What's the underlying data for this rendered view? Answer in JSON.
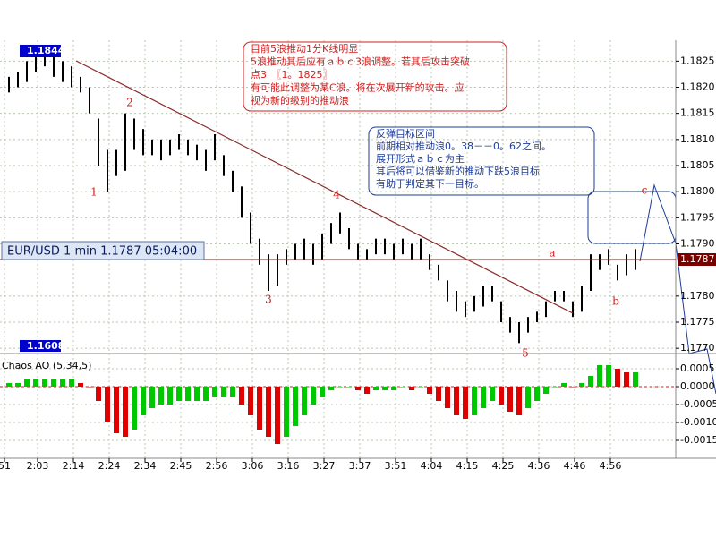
{
  "chart_data": {
    "type": "candlestick",
    "symbol_label": "EUR/USD 1 min 1.1787 05:04:00",
    "price_max": 1.1844,
    "price_min": 1.1608,
    "current_price": 1.1787,
    "indicator_title": "Chaos AO (5,34,5)",
    "x": [
      1,
      2,
      3,
      4,
      5,
      6,
      7,
      8,
      9,
      10,
      11,
      12,
      13,
      14,
      15,
      16,
      17,
      18,
      19,
      20,
      21,
      22,
      23,
      24,
      25,
      26,
      27,
      28,
      29,
      30,
      31,
      32,
      33,
      34,
      35,
      36,
      37,
      38,
      39,
      40,
      41,
      42,
      43,
      44,
      45,
      46,
      47,
      48,
      49,
      50,
      51,
      52,
      53,
      54,
      55,
      56,
      57,
      58,
      59,
      60,
      61,
      62,
      63,
      64,
      65,
      66,
      67,
      68,
      69,
      70,
      71
    ],
    "high": [
      1.1822,
      1.1823,
      1.1825,
      1.1827,
      1.1828,
      1.1826,
      1.1825,
      1.1824,
      1.1822,
      1.182,
      1.1814,
      1.1808,
      1.1808,
      1.1815,
      1.1814,
      1.1812,
      1.181,
      1.181,
      1.181,
      1.1811,
      1.181,
      1.1809,
      1.1808,
      1.1811,
      1.1807,
      1.1804,
      1.1801,
      1.1796,
      1.1791,
      1.1788,
      1.1788,
      1.1789,
      1.179,
      1.1791,
      1.179,
      1.1792,
      1.1794,
      1.1796,
      1.1793,
      1.179,
      1.1789,
      1.1791,
      1.1791,
      1.179,
      1.1791,
      1.179,
      1.1791,
      1.1788,
      1.1786,
      1.1783,
      1.1781,
      1.1779,
      1.178,
      1.1782,
      1.1782,
      1.1779,
      1.1776,
      1.1775,
      1.1776,
      1.1777,
      1.1779,
      1.1781,
      1.1781,
      1.1779,
      1.1782,
      1.1788,
      1.1788,
      1.1789,
      1.1786,
      1.1788,
      1.1789
    ],
    "low": [
      1.1819,
      1.182,
      1.1821,
      1.1823,
      1.1824,
      1.1822,
      1.1821,
      1.182,
      1.1819,
      1.1815,
      1.1805,
      1.18,
      1.1803,
      1.1804,
      1.1808,
      1.1807,
      1.1807,
      1.1806,
      1.1807,
      1.1808,
      1.1807,
      1.1806,
      1.1804,
      1.1806,
      1.1803,
      1.18,
      1.1795,
      1.179,
      1.1786,
      1.1781,
      1.1782,
      1.1786,
      1.1787,
      1.1787,
      1.1786,
      1.1787,
      1.179,
      1.1792,
      1.1789,
      1.1787,
      1.1787,
      1.1788,
      1.1788,
      1.1787,
      1.1788,
      1.1787,
      1.1787,
      1.1785,
      1.1783,
      1.1779,
      1.1777,
      1.1776,
      1.1777,
      1.1778,
      1.1779,
      1.1775,
      1.1773,
      1.1771,
      1.1773,
      1.1775,
      1.1776,
      1.1779,
      1.1779,
      1.1776,
      1.1777,
      1.1781,
      1.1785,
      1.1786,
      1.1783,
      1.1784,
      1.1785
    ],
    "color": "#000000",
    "ao": [
      0.0001,
      0.0001,
      0.0002,
      0.0002,
      0.0002,
      0.0002,
      0.0002,
      0.0002,
      0.0001,
      0.0,
      -0.0004,
      -0.001,
      -0.0013,
      -0.0014,
      -0.0012,
      -0.0008,
      -0.0006,
      -0.0005,
      -0.0005,
      -0.0004,
      -0.0004,
      -0.0004,
      -0.0004,
      -0.0003,
      -0.0003,
      -0.0003,
      -0.0005,
      -0.0008,
      -0.0012,
      -0.0014,
      -0.0016,
      -0.0014,
      -0.0011,
      -0.0008,
      -0.0005,
      -0.0003,
      -0.0001,
      0.0,
      0.0,
      -0.0001,
      -0.0002,
      -0.0001,
      -0.0001,
      -0.0001,
      0.0,
      -0.0001,
      0.0,
      -0.0002,
      -0.0004,
      -0.0006,
      -0.0008,
      -0.0009,
      -0.0008,
      -0.0006,
      -0.0004,
      -0.0005,
      -0.0007,
      -0.0008,
      -0.0006,
      -0.0004,
      -0.0002,
      0.0,
      0.0001,
      0.0,
      0.0001,
      0.0003,
      0.0006,
      0.0006,
      0.0005,
      0.0004,
      0.0004
    ],
    "ao_up_color": "#00c800",
    "ao_down_color": "#e00000",
    "xlim": [
      0,
      75.5
    ],
    "xticks": [
      {
        "value": 0.5,
        "label": "51"
      },
      {
        "value": 4.2,
        "label": "2:03"
      },
      {
        "value": 8.2,
        "label": "2:14"
      },
      {
        "value": 12.2,
        "label": "2:24"
      },
      {
        "value": 16.2,
        "label": "2:34"
      },
      {
        "value": 20.2,
        "label": "2:45"
      },
      {
        "value": 24.2,
        "label": "2:56"
      },
      {
        "value": 28.2,
        "label": "3:06"
      },
      {
        "value": 32.2,
        "label": "3:16"
      },
      {
        "value": 36.2,
        "label": "3:27"
      },
      {
        "value": 40.2,
        "label": "3:37"
      },
      {
        "value": 44.2,
        "label": "3:51"
      },
      {
        "value": 48.2,
        "label": "4:04"
      },
      {
        "value": 52.2,
        "label": "4:15"
      },
      {
        "value": 56.2,
        "label": "4:25"
      },
      {
        "value": 60.2,
        "label": "4:36"
      },
      {
        "value": 64.2,
        "label": "4:46"
      },
      {
        "value": 68.2,
        "label": "4:56"
      }
    ],
    "ylim": [
      1.1769,
      1.1829
    ],
    "yticks": [
      {
        "value": 1.1825,
        "label": "1.1825"
      },
      {
        "value": 1.182,
        "label": "1.1820"
      },
      {
        "value": 1.1815,
        "label": "1.1815"
      },
      {
        "value": 1.181,
        "label": "1.1810"
      },
      {
        "value": 1.1805,
        "label": "1.1805"
      },
      {
        "value": 1.18,
        "label": "1.1800"
      },
      {
        "value": 1.1795,
        "label": "1.1795"
      },
      {
        "value": 1.179,
        "label": "1.1790"
      },
      {
        "value": 1.178,
        "label": "1.1780"
      },
      {
        "value": 1.1775,
        "label": "1.1775"
      },
      {
        "value": 1.177,
        "label": "1.1770"
      }
    ],
    "y2lim": [
      -0.0019,
      0.0008
    ],
    "y2ticks": [
      {
        "value": 0.0005,
        "label": "0.0005"
      },
      {
        "value": 0,
        "label": "0.0000"
      },
      {
        "value": -0.0005,
        "label": "-0.0005"
      },
      {
        "value": -0.001,
        "label": "-0.0010"
      },
      {
        "value": -0.0015,
        "label": "-0.0015"
      }
    ],
    "grid": true,
    "wave_labels": [
      "1",
      "2",
      "3",
      "4",
      "5",
      "a",
      "b",
      "c"
    ],
    "note1": [
      "目前5浪推动1分K线明显",
      "5浪推动其后应有ａｂｃ3浪调整。若其后攻击突破",
      "点3　〖1。1825〗",
      "有可能此调整为某C浪。将在次展开新的攻击。应",
      "视为新的级别的推动浪"
    ],
    "note2": [
      "反弹目标区间",
      "前期相对推动浪0。38－－0。62之间。",
      "展开形式ａｂｃ为主",
      "其后将可以借鉴新的推动下跌5浪目标",
      "有助于判定其下一目标。"
    ]
  }
}
